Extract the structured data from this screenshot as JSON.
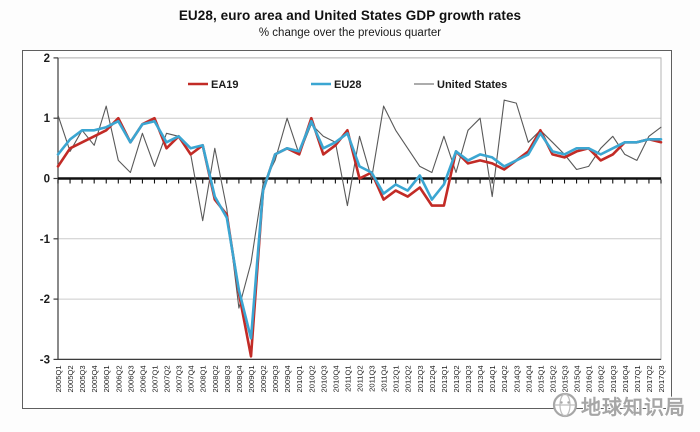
{
  "page": {
    "watermark_text": "地球知识局"
  },
  "chart_data": {
    "type": "line",
    "title": "EU28, euro area and United States GDP growth rates",
    "subtitle": "% change over the previous quarter",
    "xlabel": "",
    "ylabel": "",
    "ylim": [
      -3,
      2
    ],
    "yticks": [
      2,
      1,
      0,
      -1,
      -2,
      -3
    ],
    "grid": true,
    "legend_position": "top-inside",
    "x_labels": [
      "2005Q1",
      "2005Q2",
      "2005Q3",
      "2005Q4",
      "2006Q1",
      "2006Q2",
      "2006Q3",
      "2006Q4",
      "2007Q1",
      "2007Q2",
      "2007Q3",
      "2007Q4",
      "2008Q1",
      "2008Q2",
      "2008Q3",
      "2008Q4",
      "2009Q1",
      "2009Q2",
      "2009Q3",
      "2009Q4",
      "2010Q1",
      "2010Q2",
      "2010Q3",
      "2010Q4",
      "2011Q1",
      "2011Q2",
      "2011Q3",
      "2011Q4",
      "2012Q1",
      "2012Q2",
      "2012Q3",
      "2012Q4",
      "2013Q1",
      "2013Q2",
      "2013Q3",
      "2013Q4",
      "2014Q1",
      "2014Q2",
      "2014Q3",
      "2014Q4",
      "2015Q1",
      "2015Q2",
      "2015Q3",
      "2015Q4",
      "2016Q1",
      "2016Q2",
      "2016Q3",
      "2016Q4",
      "2017Q1",
      "2017Q2",
      "2017Q3"
    ],
    "series": [
      {
        "name": "EA19",
        "color": "#c22b26",
        "line_width": 2.6,
        "values": [
          0.2,
          0.5,
          0.6,
          0.7,
          0.8,
          1.0,
          0.6,
          0.9,
          1.0,
          0.5,
          0.7,
          0.4,
          0.55,
          -0.35,
          -0.6,
          -1.9,
          -2.95,
          -0.2,
          0.4,
          0.5,
          0.4,
          1.0,
          0.4,
          0.55,
          0.8,
          0.0,
          0.1,
          -0.35,
          -0.2,
          -0.3,
          -0.15,
          -0.45,
          -0.45,
          0.45,
          0.25,
          0.3,
          0.25,
          0.15,
          0.3,
          0.45,
          0.8,
          0.4,
          0.35,
          0.45,
          0.5,
          0.3,
          0.4,
          0.6,
          0.6,
          0.65,
          0.6
        ]
      },
      {
        "name": "EU28",
        "color": "#3ba6d2",
        "line_width": 2.6,
        "values": [
          0.4,
          0.65,
          0.8,
          0.8,
          0.85,
          0.95,
          0.6,
          0.9,
          0.95,
          0.6,
          0.7,
          0.5,
          0.55,
          -0.3,
          -0.65,
          -1.85,
          -2.65,
          -0.2,
          0.4,
          0.5,
          0.45,
          0.95,
          0.5,
          0.6,
          0.75,
          0.2,
          0.1,
          -0.25,
          -0.1,
          -0.2,
          0.05,
          -0.35,
          -0.1,
          0.45,
          0.3,
          0.4,
          0.35,
          0.2,
          0.3,
          0.4,
          0.75,
          0.45,
          0.4,
          0.5,
          0.5,
          0.4,
          0.5,
          0.6,
          0.6,
          0.65,
          0.65
        ]
      },
      {
        "name": "United States",
        "color": "#595959",
        "line_width": 1.1,
        "values": [
          1.05,
          0.45,
          0.8,
          0.55,
          1.2,
          0.3,
          0.1,
          0.75,
          0.2,
          0.75,
          0.7,
          0.4,
          -0.7,
          0.5,
          -0.5,
          -2.15,
          -1.4,
          -0.1,
          0.3,
          1.0,
          0.4,
          0.9,
          0.7,
          0.6,
          -0.45,
          0.7,
          0.0,
          1.2,
          0.8,
          0.5,
          0.2,
          0.1,
          0.7,
          0.1,
          0.8,
          1.0,
          -0.3,
          1.3,
          1.25,
          0.6,
          0.8,
          0.6,
          0.4,
          0.15,
          0.2,
          0.5,
          0.7,
          0.4,
          0.3,
          0.7,
          0.85
        ]
      }
    ],
    "colors": {
      "grid": "#cccccc",
      "zero_axis": "#111111",
      "plot_border": "#b5b5b5",
      "axis_line": "#3c3c3c",
      "tick_label": "#1c1c1c",
      "watermark": "#a6a6a6"
    }
  }
}
